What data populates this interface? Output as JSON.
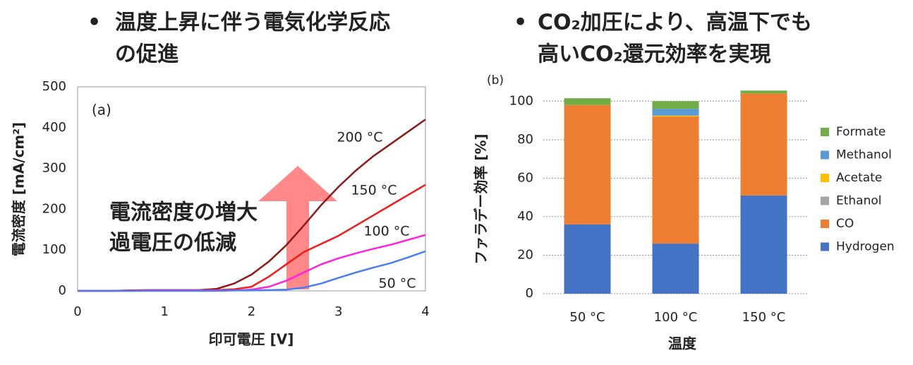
{
  "bullets": [
    [
      "温度上昇に伴う電気化学反応",
      "の促進"
    ],
    [
      "CO₂加圧により、高温下でも",
      "高いCO₂還元効率を実現"
    ]
  ],
  "chart_data": [
    {
      "type": "line",
      "annotation": "(a)",
      "xlabel": "印可電圧 [V]",
      "ylabel": "電流密度 [mA/cm²]",
      "callout": [
        "電流密度の増大",
        "過電圧の低減"
      ],
      "x": [
        0,
        0.2,
        0.4,
        0.6,
        0.8,
        1.0,
        1.2,
        1.4,
        1.6,
        1.8,
        2.0,
        2.2,
        2.4,
        2.6,
        2.8,
        3.0,
        3.2,
        3.4,
        3.6,
        3.8,
        4.0
      ],
      "series": [
        {
          "name": "200 °C",
          "color": "#8b1a1a",
          "values": [
            0,
            0,
            0,
            1,
            2,
            2,
            2,
            2,
            5,
            18,
            40,
            72,
            112,
            160,
            210,
            255,
            295,
            330,
            360,
            390,
            420
          ]
        },
        {
          "name": "150 °C",
          "color": "#ee1c1c",
          "values": [
            0,
            0,
            0,
            1,
            1,
            1,
            1,
            1,
            2,
            4,
            10,
            35,
            65,
            95,
            115,
            135,
            160,
            185,
            210,
            235,
            260
          ]
        },
        {
          "name": "100 °C",
          "color": "#ff22dd",
          "values": [
            0,
            0,
            0,
            0,
            1,
            1,
            1,
            1,
            1,
            1,
            3,
            10,
            25,
            45,
            65,
            80,
            92,
            103,
            113,
            125,
            137
          ]
        },
        {
          "name": "50 °C",
          "color": "#4a7ef0",
          "values": [
            0,
            0,
            0,
            0,
            0,
            0,
            0,
            0,
            0,
            1,
            1,
            2,
            3,
            8,
            18,
            32,
            45,
            57,
            68,
            82,
            97
          ]
        }
      ],
      "xlim": [
        0,
        4
      ],
      "xticks": [
        0,
        1,
        2,
        3,
        4
      ],
      "ylim": [
        0,
        500
      ],
      "yticks": [
        0,
        100,
        200,
        300,
        400,
        500
      ]
    },
    {
      "type": "stacked_bar",
      "annotation": "(b)",
      "xlabel": "温度",
      "ylabel": "ファラデー効率 [%]",
      "categories": [
        "50 °C",
        "100 °C",
        "150 °C"
      ],
      "series": [
        {
          "name": "Hydrogen",
          "color": "#4472c4",
          "values": [
            36,
            26,
            51
          ]
        },
        {
          "name": "CO",
          "color": "#ed7d31",
          "values": [
            62,
            66,
            53
          ]
        },
        {
          "name": "Ethanol",
          "color": "#a5a5a5",
          "values": [
            0,
            0,
            0
          ]
        },
        {
          "name": "Acetate",
          "color": "#ffc000",
          "values": [
            0,
            0.5,
            0
          ]
        },
        {
          "name": "Methanol",
          "color": "#5b9bd5",
          "values": [
            0,
            3.5,
            0
          ]
        },
        {
          "name": "Formate",
          "color": "#70ad47",
          "values": [
            3.5,
            4,
            1.5
          ]
        }
      ],
      "ylim": [
        0,
        110
      ],
      "yticks": [
        0,
        20,
        40,
        60,
        80,
        100
      ],
      "grid": true,
      "legend": "right"
    }
  ]
}
